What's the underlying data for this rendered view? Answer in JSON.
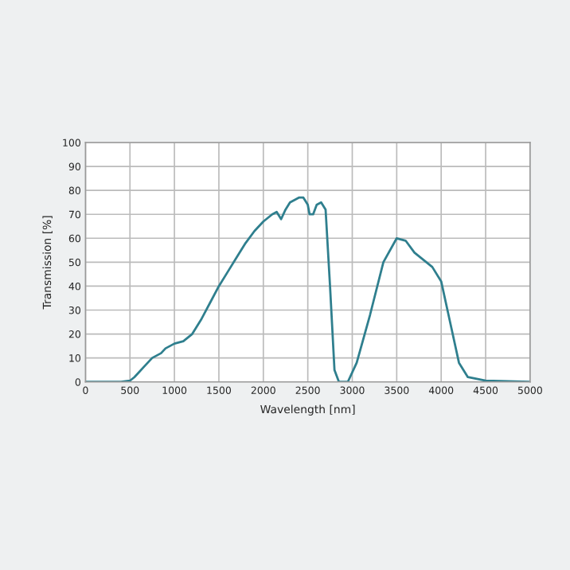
{
  "chart_data": {
    "type": "line",
    "xlabel": "Wavelength [nm]",
    "ylabel": "Transmission [%]",
    "x": [
      0,
      400,
      500,
      550,
      600,
      650,
      700,
      750,
      800,
      850,
      900,
      1000,
      1100,
      1200,
      1300,
      1400,
      1500,
      1600,
      1700,
      1800,
      1900,
      2000,
      2100,
      2150,
      2200,
      2250,
      2300,
      2400,
      2450,
      2500,
      2520,
      2560,
      2600,
      2650,
      2700,
      2750,
      2800,
      2850,
      2950,
      3050,
      3200,
      3350,
      3500,
      3600,
      3700,
      3800,
      3900,
      4000,
      4100,
      4200,
      4300,
      4500,
      5000
    ],
    "series": [
      {
        "color": "#2f7f8e",
        "values": [
          0,
          0,
          0.5,
          2,
          4,
          6,
          8,
          10,
          11,
          12,
          14,
          16,
          17,
          20,
          26,
          33,
          40,
          46,
          52,
          58,
          63,
          67,
          70,
          71,
          68,
          72,
          75,
          77,
          77,
          74,
          70,
          70,
          74,
          75,
          72,
          40,
          5,
          0,
          0,
          8,
          28,
          50,
          60,
          59,
          54,
          51,
          48,
          42,
          25,
          8,
          2,
          0.5,
          0
        ]
      }
    ],
    "xlim": [
      0,
      5000
    ],
    "xticks": [
      0,
      500,
      1000,
      1500,
      2000,
      2500,
      3000,
      3500,
      4000,
      4500,
      5000
    ],
    "ylim": [
      0,
      100
    ],
    "yticks": [
      0,
      10,
      20,
      30,
      40,
      50,
      60,
      70,
      80,
      90,
      100
    ],
    "grid": true,
    "marker": "none",
    "line_style": "solid"
  }
}
